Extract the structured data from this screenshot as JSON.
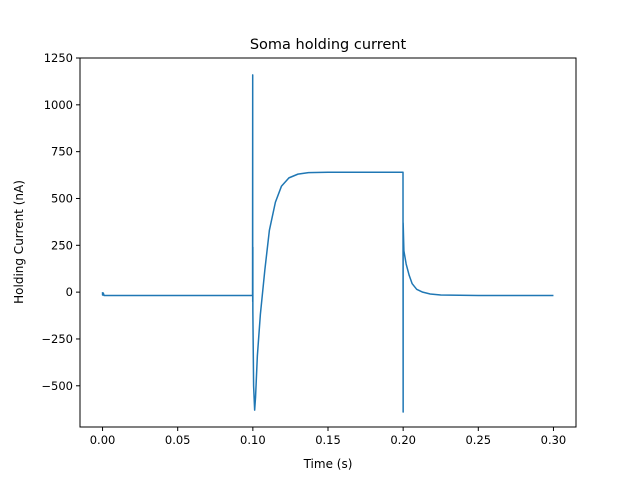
{
  "chart_data": {
    "type": "line",
    "title": "Soma holding current",
    "xlabel": "Time (s)",
    "ylabel": "Holding Current (nA)",
    "xlim": [
      -0.015,
      0.315
    ],
    "ylim": [
      -720,
      1250
    ],
    "xticks": [
      0.0,
      0.05,
      0.1,
      0.15,
      0.2,
      0.25,
      0.3
    ],
    "xtick_labels": [
      "0.00",
      "0.05",
      "0.10",
      "0.15",
      "0.20",
      "0.25",
      "0.30"
    ],
    "yticks": [
      -500,
      -250,
      0,
      250,
      500,
      750,
      1000,
      1250
    ],
    "ytick_labels": [
      "−500",
      "−250",
      "0",
      "250",
      "500",
      "750",
      "1000",
      "1250"
    ],
    "grid": false,
    "legend": "none",
    "series": [
      {
        "color": "#1f77b4",
        "points": [
          [
            0.0,
            0
          ],
          [
            0.0,
            -15
          ],
          [
            0.0005,
            -15
          ],
          [
            0.0005,
            -5
          ],
          [
            0.001,
            -18
          ],
          [
            0.05,
            -18
          ],
          [
            0.0998,
            -18
          ],
          [
            0.0999,
            1160
          ],
          [
            0.0999,
            -50
          ],
          [
            0.1,
            240
          ],
          [
            0.1,
            -100
          ],
          [
            0.1005,
            -500
          ],
          [
            0.1012,
            -630
          ],
          [
            0.1018,
            -560
          ],
          [
            0.103,
            -340
          ],
          [
            0.105,
            -120
          ],
          [
            0.108,
            120
          ],
          [
            0.111,
            330
          ],
          [
            0.115,
            480
          ],
          [
            0.119,
            565
          ],
          [
            0.124,
            610
          ],
          [
            0.13,
            630
          ],
          [
            0.137,
            638
          ],
          [
            0.15,
            640
          ],
          [
            0.175,
            640
          ],
          [
            0.1999,
            640
          ],
          [
            0.2,
            -640
          ],
          [
            0.2,
            370
          ],
          [
            0.2005,
            220
          ],
          [
            0.202,
            150
          ],
          [
            0.204,
            90
          ],
          [
            0.206,
            45
          ],
          [
            0.209,
            15
          ],
          [
            0.213,
            0
          ],
          [
            0.218,
            -10
          ],
          [
            0.225,
            -15
          ],
          [
            0.25,
            -18
          ],
          [
            0.3,
            -18
          ]
        ]
      }
    ]
  }
}
